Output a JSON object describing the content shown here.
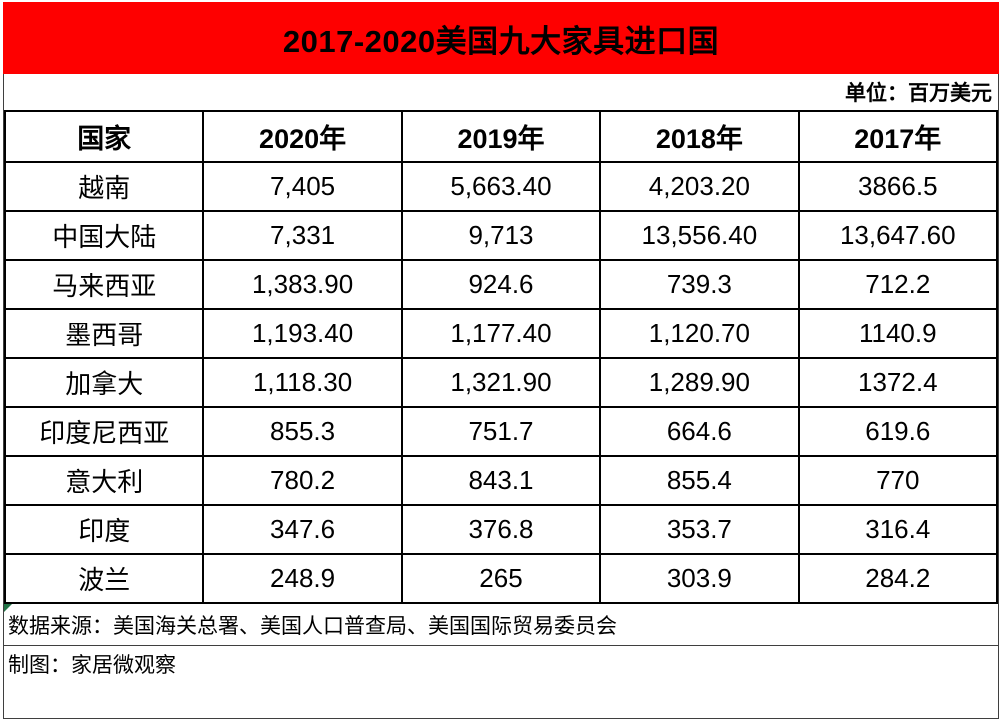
{
  "banner": {
    "title": "2017-2020美国九大家具进口国",
    "bg_color": "#fe0000",
    "text_color": "#000000"
  },
  "unit_label": "单位：百万美元",
  "table": {
    "columns": [
      "国家",
      "2020年",
      "2019年",
      "2018年",
      "2017年"
    ],
    "rows": [
      {
        "country": "越南",
        "values": [
          "7,405",
          "5,663.40",
          "4,203.20",
          "3866.5"
        ]
      },
      {
        "country": "中国大陆",
        "values": [
          "7,331",
          "9,713",
          "13,556.40",
          "13,647.60"
        ]
      },
      {
        "country": "马来西亚",
        "values": [
          "1,383.90",
          "924.6",
          "739.3",
          "712.2"
        ]
      },
      {
        "country": "墨西哥",
        "values": [
          "1,193.40",
          "1,177.40",
          "1,120.70",
          "1140.9"
        ]
      },
      {
        "country": "加拿大",
        "values": [
          "1,118.30",
          "1,321.90",
          "1,289.90",
          "1372.4"
        ]
      },
      {
        "country": "印度尼西亚",
        "values": [
          "855.3",
          "751.7",
          "664.6",
          "619.6"
        ]
      },
      {
        "country": "意大利",
        "values": [
          "780.2",
          "843.1",
          "855.4",
          "770"
        ]
      },
      {
        "country": "印度",
        "values": [
          "347.6",
          "376.8",
          "353.7",
          "316.4"
        ]
      },
      {
        "country": "波兰",
        "values": [
          "248.9",
          "265",
          "303.9",
          "284.2"
        ]
      }
    ]
  },
  "footer": {
    "source": "数据来源：美国海关总署、美国人口普查局、美国国际贸易委员会",
    "credit": "制图：家居微观察"
  },
  "chart_data": {
    "type": "table",
    "title": "2017-2020美国九大家具进口国",
    "unit": "百万美元",
    "columns": [
      "国家",
      "2020年",
      "2019年",
      "2018年",
      "2017年"
    ],
    "rows": [
      [
        "越南",
        7405,
        5663.4,
        4203.2,
        3866.5
      ],
      [
        "中国大陆",
        7331,
        9713,
        13556.4,
        13647.6
      ],
      [
        "马来西亚",
        1383.9,
        924.6,
        739.3,
        712.2
      ],
      [
        "墨西哥",
        1193.4,
        1177.4,
        1120.7,
        1140.9
      ],
      [
        "加拿大",
        1118.3,
        1321.9,
        1289.9,
        1372.4
      ],
      [
        "印度尼西亚",
        855.3,
        751.7,
        664.6,
        619.6
      ],
      [
        "意大利",
        780.2,
        843.1,
        855.4,
        770
      ],
      [
        "印度",
        347.6,
        376.8,
        353.7,
        316.4
      ],
      [
        "波兰",
        248.9,
        265,
        303.9,
        284.2
      ]
    ]
  }
}
